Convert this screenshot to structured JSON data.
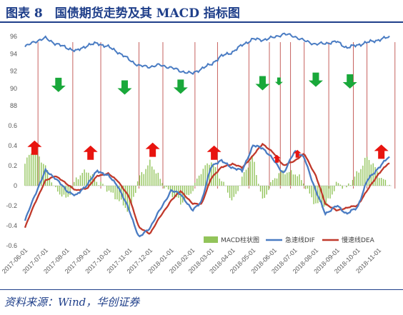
{
  "figure": {
    "title": "图表 8　国债期货走势及其 MACD 指标图",
    "source": "资料来源：Wind，华创证券"
  },
  "colors": {
    "price": "#4a7cc3",
    "dif": "#4a7cc3",
    "dea": "#c0392b",
    "bar": "#92c45a",
    "vline": "#c0504d",
    "arrow_up": "#e8140f",
    "arrow_down": "#19a83a",
    "title": "#1f3f8a"
  },
  "chart_data": [
    {
      "type": "line",
      "x": [
        "2017-06-01",
        "2017-06-15",
        "2017-07-01",
        "2017-07-15",
        "2017-08-01",
        "2017-08-15",
        "2017-09-01",
        "2017-09-15",
        "2017-10-01",
        "2017-10-15",
        "2017-11-01",
        "2017-11-15",
        "2017-12-01",
        "2017-12-15",
        "2018-01-01",
        "2018-01-15",
        "2018-02-01",
        "2018-02-15",
        "2018-03-01",
        "2018-03-15",
        "2018-04-01",
        "2018-04-15",
        "2018-05-01",
        "2018-05-15",
        "2018-06-01",
        "2018-06-15",
        "2018-07-01",
        "2018-07-15",
        "2018-08-01",
        "2018-08-15",
        "2018-09-01",
        "2018-09-15",
        "2018-10-01",
        "2018-10-15",
        "2018-11-01",
        "2018-11-15"
      ],
      "series": [
        {
          "name": "",
          "values": [
            94.8,
            95.4,
            95.8,
            95.2,
            94.7,
            94.3,
            95.0,
            95.2,
            94.8,
            94.2,
            93.3,
            92.6,
            92.5,
            92.7,
            92.4,
            92.0,
            91.7,
            92.3,
            92.8,
            93.7,
            94.2,
            95.0,
            95.7,
            95.6,
            95.9,
            96.3,
            96.0,
            95.5,
            95.1,
            95.2,
            95.4,
            94.7,
            95.0,
            95.3,
            95.6,
            95.9
          ]
        }
      ],
      "ylim": [
        88,
        96
      ],
      "yticks": [
        88,
        90,
        92,
        94,
        96
      ],
      "grid": false
    },
    {
      "type": "bar",
      "x": [
        "2017-06-01",
        "2017-06-15",
        "2017-07-01",
        "2017-07-15",
        "2017-08-01",
        "2017-08-15",
        "2017-09-01",
        "2017-09-15",
        "2017-10-01",
        "2017-10-15",
        "2017-11-01",
        "2017-11-15",
        "2017-12-01",
        "2017-12-15",
        "2018-01-01",
        "2018-01-15",
        "2018-02-01",
        "2018-02-15",
        "2018-03-01",
        "2018-03-15",
        "2018-04-01",
        "2018-04-15",
        "2018-05-01",
        "2018-05-15",
        "2018-06-01",
        "2018-06-15",
        "2018-07-01",
        "2018-07-15",
        "2018-08-01",
        "2018-08-15",
        "2018-09-01",
        "2018-09-15",
        "2018-10-01",
        "2018-10-15",
        "2018-11-01",
        "2018-11-15"
      ],
      "series": [
        {
          "name": "MACD柱状图",
          "type": "bar",
          "values": [
            0.22,
            0.38,
            0.2,
            -0.05,
            -0.12,
            0.06,
            0.16,
            0.04,
            -0.05,
            -0.12,
            -0.28,
            0.1,
            0.22,
            0.08,
            -0.08,
            -0.18,
            -0.04,
            0.14,
            0.26,
            0.06,
            -0.16,
            0.08,
            0.28,
            -0.14,
            0.06,
            0.16,
            0.12,
            0.02,
            -0.18,
            -0.22,
            0.04,
            -0.04,
            0.14,
            0.28,
            0.12,
            0.02
          ]
        },
        {
          "name": "急速线DIF",
          "type": "line",
          "values": [
            -0.35,
            -0.1,
            0.15,
            0.08,
            -0.05,
            -0.1,
            0.02,
            0.15,
            0.1,
            0.0,
            -0.25,
            -0.52,
            -0.42,
            -0.25,
            -0.05,
            -0.08,
            -0.25,
            -0.15,
            0.2,
            0.25,
            0.18,
            0.15,
            0.4,
            0.38,
            0.25,
            0.12,
            0.35,
            0.28,
            -0.05,
            -0.28,
            -0.2,
            -0.28,
            -0.22,
            0.05,
            0.18,
            0.28
          ]
        },
        {
          "name": "慢速线DEA",
          "type": "line",
          "values": [
            -0.42,
            -0.18,
            0.05,
            0.1,
            0.02,
            -0.05,
            -0.02,
            0.1,
            0.12,
            0.05,
            -0.12,
            -0.42,
            -0.48,
            -0.32,
            -0.15,
            -0.05,
            -0.18,
            -0.18,
            0.08,
            0.18,
            0.22,
            0.18,
            0.3,
            0.42,
            0.32,
            0.2,
            0.25,
            0.32,
            0.1,
            -0.18,
            -0.25,
            -0.22,
            -0.2,
            -0.05,
            0.12,
            0.22
          ]
        }
      ],
      "ylim": [
        -0.6,
        0.6
      ],
      "yticks": [
        "0.6",
        "0.4",
        "0.2",
        "0",
        "-0.2",
        "-0.4",
        "-0.6"
      ],
      "legend": "bottom-right",
      "grid": false
    }
  ],
  "x_tick_labels": [
    "2017-06-01",
    "2017-07-01",
    "2017-08-01",
    "2017-09-01",
    "2017-10-01",
    "2017-11-01",
    "2017-12-01",
    "2018-01-01",
    "2018-02-01",
    "2018-03-01",
    "2018-04-01",
    "2018-05-01",
    "2018-06-01",
    "2018-07-01",
    "2018-08-01",
    "2018-09-01",
    "2018-10-01",
    "2018-11-01"
  ],
  "signal_dates": [
    "2017-06-20",
    "2017-08-10",
    "2017-09-20",
    "2017-11-15",
    "2017-12-20",
    "2018-02-05",
    "2018-03-10",
    "2018-04-25",
    "2018-05-25",
    "2018-06-10",
    "2018-06-25",
    "2018-07-15",
    "2018-08-20",
    "2018-09-25",
    "2018-10-15",
    "2018-11-25"
  ],
  "arrows": [
    {
      "date": "2017-06-15",
      "dir": "up",
      "panel": "macd",
      "y": 0.38
    },
    {
      "date": "2017-07-20",
      "dir": "down",
      "panel": "price",
      "y": 90.4
    },
    {
      "date": "2017-09-05",
      "dir": "up",
      "panel": "macd",
      "y": 0.33
    },
    {
      "date": "2017-10-25",
      "dir": "down",
      "panel": "price",
      "y": 90.1
    },
    {
      "date": "2017-12-05",
      "dir": "up",
      "panel": "macd",
      "y": 0.36
    },
    {
      "date": "2018-01-15",
      "dir": "down",
      "panel": "price",
      "y": 90.2
    },
    {
      "date": "2018-03-05",
      "dir": "up",
      "panel": "macd",
      "y": 0.33
    },
    {
      "date": "2018-05-15",
      "dir": "down",
      "panel": "price",
      "y": 90.6
    },
    {
      "date": "2018-06-05",
      "dir": "up",
      "panel": "macd",
      "y": 0.27,
      "small": true
    },
    {
      "date": "2018-06-08",
      "dir": "down",
      "panel": "price",
      "y": 90.8,
      "small": true
    },
    {
      "date": "2018-07-05",
      "dir": "up",
      "panel": "macd",
      "y": 0.32,
      "small": true
    },
    {
      "date": "2018-08-01",
      "dir": "down",
      "panel": "price",
      "y": 91.0
    },
    {
      "date": "2018-09-20",
      "dir": "down",
      "panel": "price",
      "y": 90.8
    },
    {
      "date": "2018-11-05",
      "dir": "up",
      "panel": "macd",
      "y": 0.34
    }
  ]
}
